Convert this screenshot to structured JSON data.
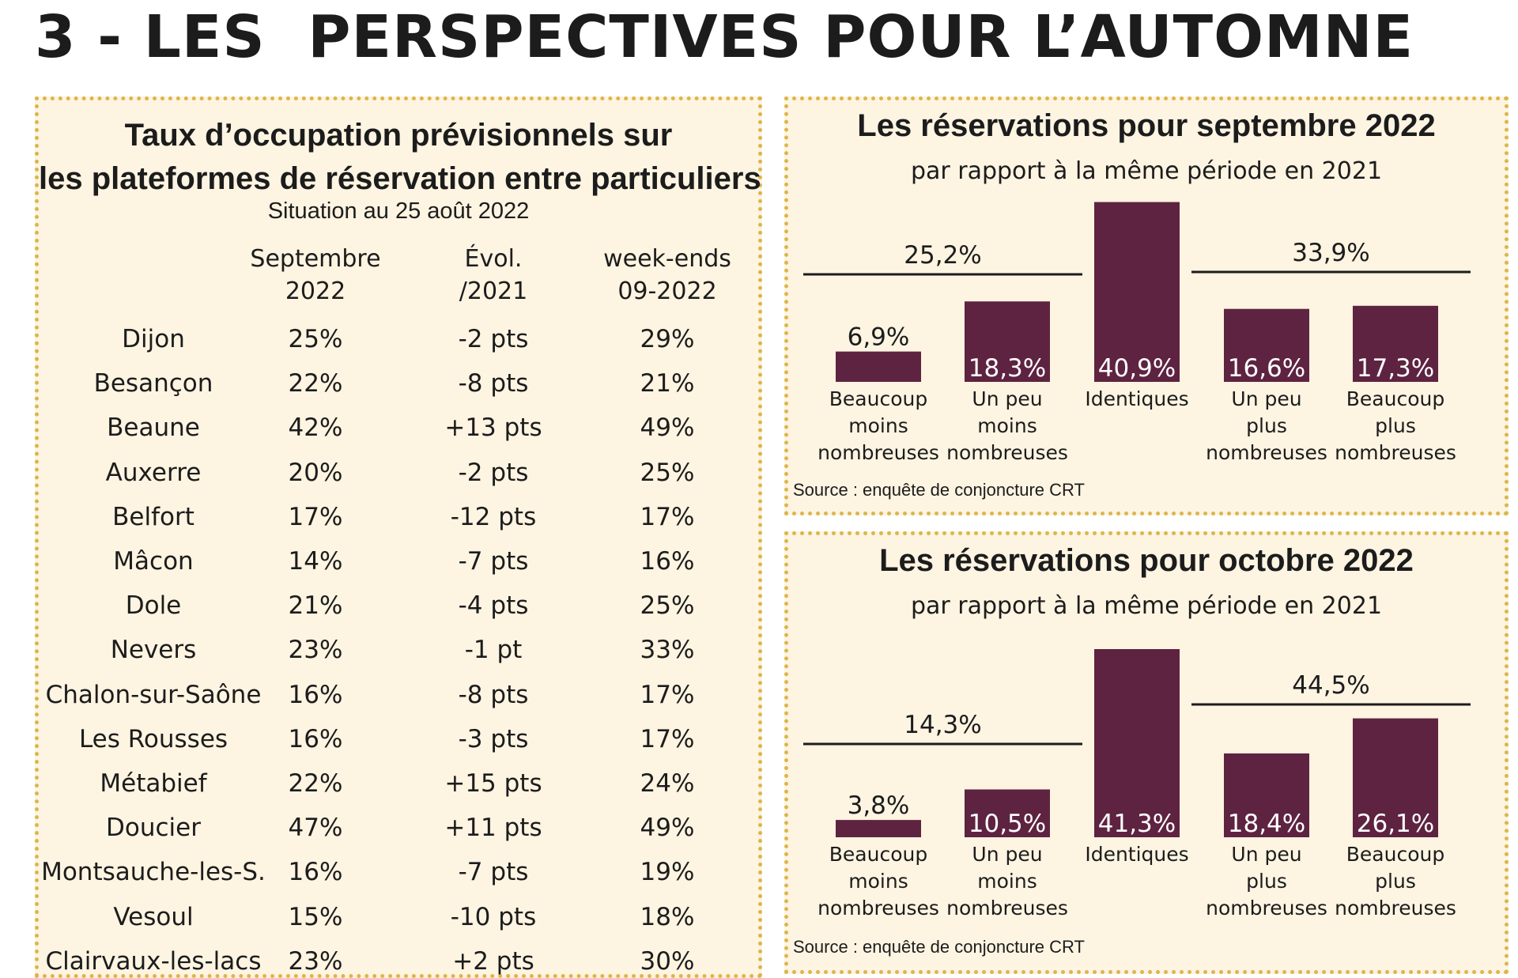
{
  "page_title": "3 - LES  PERSPECTIVES POUR L’AUTOMNE",
  "table": {
    "title_line1": "Taux d’occupation prévisionnels sur",
    "title_line2": "les plateformes de réservation entre particuliers",
    "subtitle": "Situation au 25 août 2022",
    "headers": [
      {
        "line1": "Septembre",
        "line2": "2022"
      },
      {
        "line1": "Évol.",
        "line2": "/2021"
      },
      {
        "line1": "week-ends",
        "line2": "09-2022"
      }
    ],
    "rows": [
      {
        "city": "Dijon",
        "sep": "25%",
        "evol": "-2 pts",
        "we": "29%"
      },
      {
        "city": "Besançon",
        "sep": "22%",
        "evol": "-8 pts",
        "we": "21%"
      },
      {
        "city": "Beaune",
        "sep": "42%",
        "evol": "+13 pts",
        "we": "49%"
      },
      {
        "city": "Auxerre",
        "sep": "20%",
        "evol": "-2 pts",
        "we": "25%"
      },
      {
        "city": "Belfort",
        "sep": "17%",
        "evol": "-12 pts",
        "we": "17%"
      },
      {
        "city": "Mâcon",
        "sep": "14%",
        "evol": "-7 pts",
        "we": "16%"
      },
      {
        "city": "Dole",
        "sep": "21%",
        "evol": "-4 pts",
        "we": "25%"
      },
      {
        "city": "Nevers",
        "sep": "23%",
        "evol": "-1 pt",
        "we": "33%"
      },
      {
        "city": "Chalon-sur-Saône",
        "sep": "16%",
        "evol": "-8 pts",
        "we": "17%"
      },
      {
        "city": "Les Rousses",
        "sep": "16%",
        "evol": "-3 pts",
        "we": "17%"
      },
      {
        "city": "Métabief",
        "sep": "22%",
        "evol": "+15 pts",
        "we": "24%"
      },
      {
        "city": "Doucier",
        "sep": "47%",
        "evol": "+11 pts",
        "we": "49%"
      },
      {
        "city": "Montsauche-les-S.",
        "sep": "16%",
        "evol": "-7 pts",
        "we": "19%"
      },
      {
        "city": "Vesoul",
        "sep": "15%",
        "evol": "-10 pts",
        "we": "18%"
      },
      {
        "city": "Clairvaux-les-lacs",
        "sep": "23%",
        "evol": "+2 pts",
        "we": "30%"
      }
    ]
  },
  "colors": {
    "bar": "#5e2340",
    "panel_bg": "#fdf4e2",
    "border": "#dcb64a"
  },
  "chart_data": [
    {
      "type": "bar",
      "title": "Les réservations pour septembre 2022",
      "subtitle": "par rapport à la même période en 2021",
      "categories": [
        [
          "Beaucoup",
          "moins",
          "nombreuses"
        ],
        [
          "Un peu",
          "moins",
          "nombreuses"
        ],
        [
          "Identiques"
        ],
        [
          "Un peu",
          "plus",
          "nombreuses"
        ],
        [
          "Beaucoup",
          "plus",
          "nombreuses"
        ]
      ],
      "values": [
        6.9,
        18.3,
        40.9,
        16.6,
        17.3
      ],
      "value_labels": [
        "6,9%",
        "18,3%",
        "40,9%",
        "16,6%",
        "17,3%"
      ],
      "group_totals": [
        {
          "label": "25,2%",
          "covers": [
            0,
            1
          ]
        },
        {
          "label": "33,9%",
          "covers": [
            3,
            4
          ]
        }
      ],
      "source": "Source : enquête de conjoncture CRT",
      "ylim": [
        0,
        41
      ]
    },
    {
      "type": "bar",
      "title": "Les réservations pour octobre 2022",
      "subtitle": "par rapport à la même période en 2021",
      "categories": [
        [
          "Beaucoup",
          "moins",
          "nombreuses"
        ],
        [
          "Un peu",
          "moins",
          "nombreuses"
        ],
        [
          "Identiques"
        ],
        [
          "Un peu",
          "plus",
          "nombreuses"
        ],
        [
          "Beaucoup",
          "plus",
          "nombreuses"
        ]
      ],
      "values": [
        3.8,
        10.5,
        41.3,
        18.4,
        26.1
      ],
      "value_labels": [
        "3,8%",
        "10,5%",
        "41,3%",
        "18,4%",
        "26,1%"
      ],
      "group_totals": [
        {
          "label": "14,3%",
          "covers": [
            0,
            1
          ]
        },
        {
          "label": "44,5%",
          "covers": [
            3,
            4
          ]
        }
      ],
      "source": "Source : enquête de conjoncture CRT",
      "ylim": [
        0,
        41.3
      ]
    }
  ]
}
